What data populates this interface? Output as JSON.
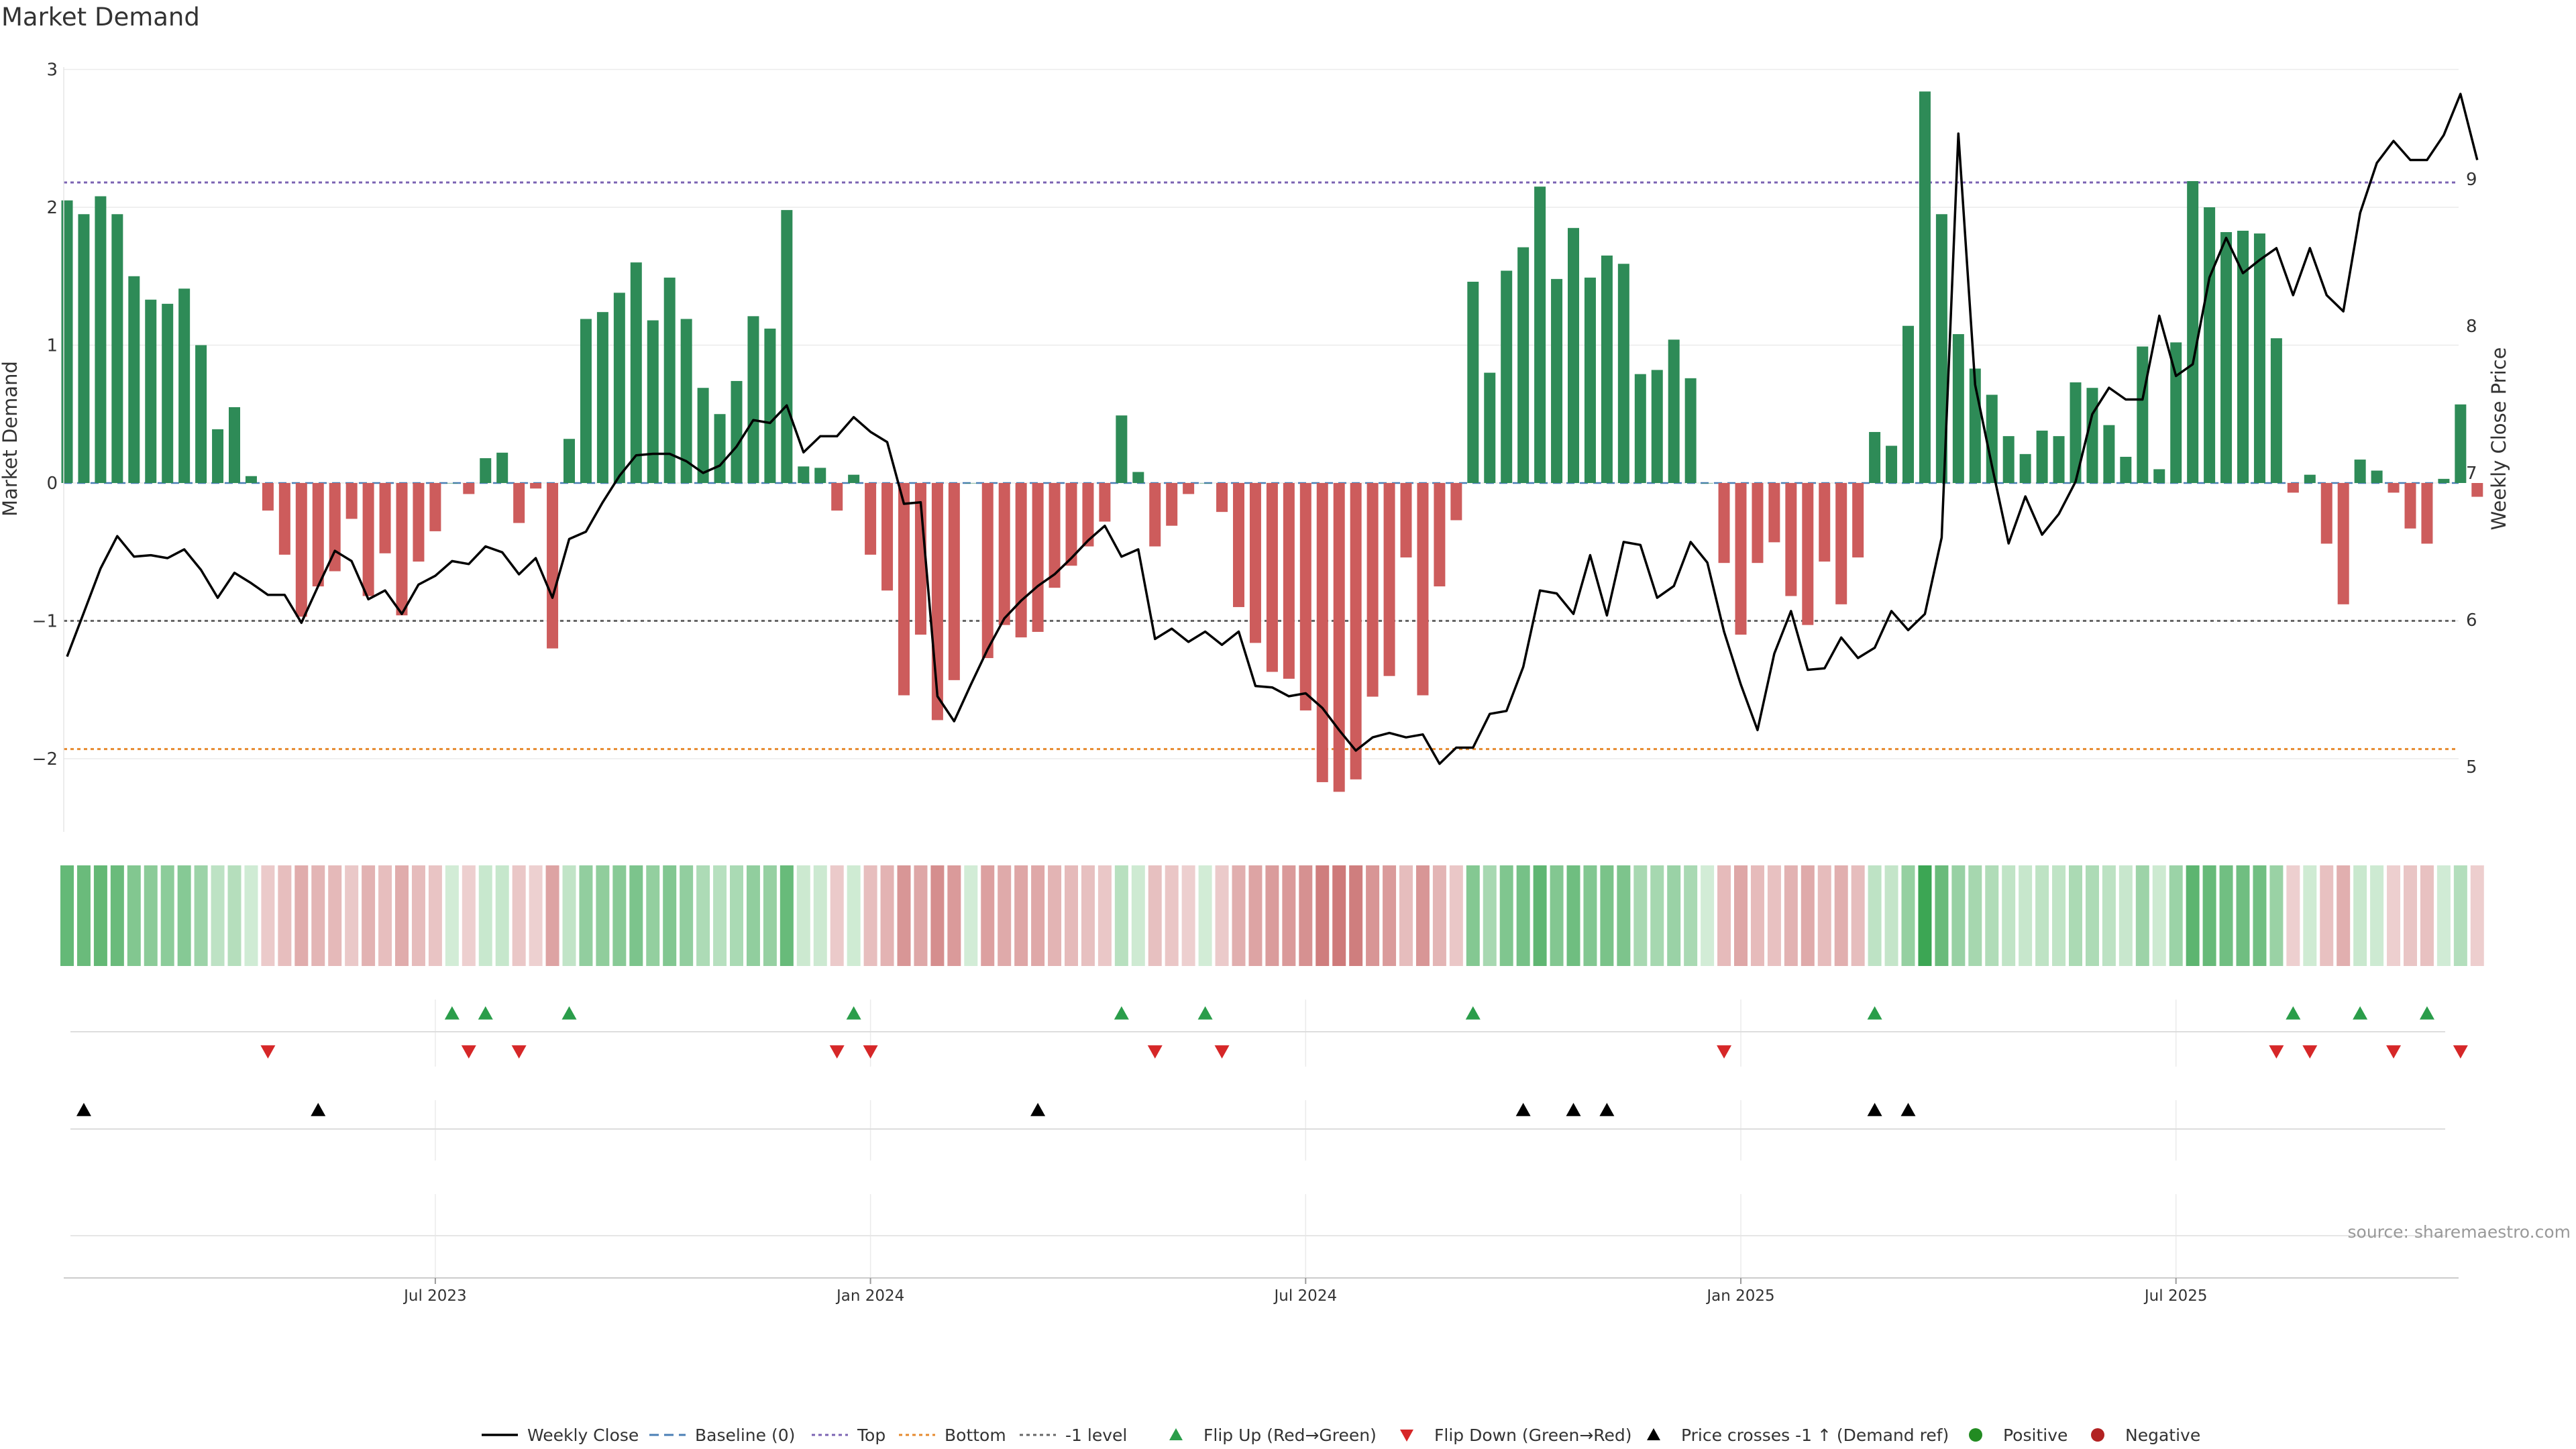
{
  "chart_data": {
    "type": "bar",
    "title": "Market Demand",
    "ylabel": "Market Demand",
    "y2label": "Weekly Close Price",
    "ylim": [
      -2.55,
      3.0
    ],
    "y2lim": [
      4.55,
      9.75
    ],
    "yticks": [
      3,
      2,
      1,
      0,
      -1,
      -2
    ],
    "ytick_labels": [
      "3",
      "2",
      "1",
      "0",
      "−1",
      "−2"
    ],
    "y2ticks": [
      9,
      8,
      7,
      6,
      5
    ],
    "y2tick_labels": [
      "9",
      "8",
      "7",
      "6",
      "5"
    ],
    "x_tick_labels": [
      "Jul 2023",
      "Jan 2024",
      "Jul 2024",
      "Jan 2025",
      "Jul 2025"
    ],
    "x_tick_weeks": [
      22,
      48,
      74,
      100,
      126
    ],
    "week_count": 144,
    "reference_lines": {
      "top": 2.18,
      "bottom": -1.93,
      "minus_one": -1.0,
      "baseline": 0
    },
    "demand": [
      2.05,
      1.95,
      2.08,
      1.95,
      1.5,
      1.33,
      1.3,
      1.41,
      1.0,
      0.39,
      0.55,
      0.05,
      -0.2,
      -0.52,
      -0.97,
      -0.75,
      -0.64,
      -0.26,
      -0.82,
      -0.51,
      -0.96,
      -0.57,
      -0.35,
      0.0,
      -0.08,
      0.18,
      0.22,
      -0.29,
      -0.04,
      -1.2,
      0.32,
      1.19,
      1.24,
      1.38,
      1.6,
      1.18,
      1.49,
      1.19,
      0.69,
      0.5,
      0.74,
      1.21,
      1.12,
      1.98,
      0.12,
      0.11,
      -0.2,
      0.06,
      -0.52,
      -0.78,
      -1.54,
      -1.1,
      -1.72,
      -1.43,
      0.0,
      -1.27,
      -1.03,
      -1.12,
      -1.08,
      -0.76,
      -0.6,
      -0.46,
      -0.28,
      0.49,
      0.08,
      -0.46,
      -0.31,
      -0.08,
      0.0,
      -0.21,
      -0.9,
      -1.16,
      -1.37,
      -1.42,
      -1.65,
      -2.17,
      -2.24,
      -2.15,
      -1.55,
      -1.4,
      -0.54,
      -1.54,
      -0.75,
      -0.27,
      1.46,
      0.8,
      1.54,
      1.71,
      2.15,
      1.48,
      1.85,
      1.49,
      1.65,
      1.59,
      0.79,
      0.82,
      1.04,
      0.76,
      0.0,
      -0.58,
      -1.1,
      -0.58,
      -0.43,
      -0.82,
      -1.03,
      -0.57,
      -0.88,
      -0.54,
      0.37,
      0.27,
      1.14,
      2.84,
      1.95,
      1.08,
      0.83,
      0.64,
      0.34,
      0.21,
      0.38,
      0.34,
      0.73,
      0.69,
      0.42,
      0.19,
      0.99,
      0.1,
      1.02,
      2.19,
      2.0,
      1.82,
      1.83,
      1.81,
      1.05,
      -0.07,
      0.06,
      -0.44,
      -0.88,
      0.17,
      0.09,
      -0.07,
      -0.33,
      -0.44,
      0.03,
      0.57,
      -0.1
    ],
    "close": [
      5.75,
      6.05,
      6.35,
      6.57,
      6.43,
      6.44,
      6.42,
      6.48,
      6.34,
      6.15,
      6.32,
      6.25,
      6.17,
      6.17,
      5.98,
      6.23,
      6.47,
      6.4,
      6.14,
      6.2,
      6.04,
      6.24,
      6.3,
      6.4,
      6.38,
      6.5,
      6.46,
      6.31,
      6.42,
      6.15,
      6.55,
      6.6,
      6.8,
      6.98,
      7.12,
      7.13,
      7.13,
      7.08,
      7.0,
      7.05,
      7.18,
      7.36,
      7.34,
      7.46,
      7.14,
      7.25,
      7.25,
      7.38,
      7.28,
      7.21,
      6.79,
      6.8,
      5.48,
      5.31,
      5.56,
      5.8,
      6.01,
      6.13,
      6.23,
      6.31,
      6.42,
      6.54,
      6.64,
      6.43,
      6.48,
      5.87,
      5.94,
      5.85,
      5.92,
      5.83,
      5.92,
      5.55,
      5.54,
      5.48,
      5.5,
      5.4,
      5.25,
      5.11,
      5.2,
      5.23,
      5.2,
      5.22,
      5.02,
      5.13,
      5.13,
      5.36,
      5.38,
      5.68,
      6.2,
      6.18,
      6.04,
      6.44,
      6.03,
      6.53,
      6.51,
      6.15,
      6.23,
      6.53,
      6.39,
      5.92,
      5.56,
      5.25,
      5.77,
      6.06,
      5.66,
      5.67,
      5.88,
      5.74,
      5.81,
      6.06,
      5.93,
      6.04,
      6.56,
      9.31,
      7.6,
      7.05,
      6.52,
      6.84,
      6.58,
      6.72,
      6.94,
      7.4,
      7.58,
      7.5,
      7.5,
      8.07,
      7.66,
      7.74,
      8.33,
      8.6,
      8.36,
      8.45,
      8.53,
      8.21,
      8.53,
      8.21,
      8.1,
      8.77,
      9.11,
      9.26,
      9.13,
      9.13,
      9.3,
      9.58,
      9.13
    ],
    "flip_up_weeks": [
      23,
      25,
      30,
      47,
      63,
      68,
      84,
      108,
      133,
      137,
      141
    ],
    "flip_down_weeks": [
      12,
      24,
      27,
      46,
      48,
      65,
      69,
      99,
      132,
      134,
      139,
      143
    ],
    "price_cross_weeks": [
      1,
      15,
      58,
      87,
      90,
      92,
      108,
      110
    ],
    "legend": [
      {
        "label": "Weekly Close",
        "kind": "line",
        "color": "#000000"
      },
      {
        "label": "Baseline (0)",
        "kind": "dash",
        "color": "#4a7fb5"
      },
      {
        "label": "Top",
        "kind": "dot",
        "color": "#7b63b3"
      },
      {
        "label": "Bottom",
        "kind": "dot",
        "color": "#e68a2e"
      },
      {
        "label": "-1 level",
        "kind": "dot",
        "color": "#666666"
      },
      {
        "label": "Flip Up (Red→Green)",
        "kind": "tri-up",
        "color": "#2a9d4a"
      },
      {
        "label": "Flip Down (Green→Red)",
        "kind": "tri-down",
        "color": "#d62728"
      },
      {
        "label": "Price crosses -1 ↑ (Demand ref)",
        "kind": "tri-up",
        "color": "#000000"
      },
      {
        "label": "Positive",
        "kind": "circle",
        "color": "#228b22"
      },
      {
        "label": "Negative",
        "kind": "circle",
        "color": "#b22222"
      }
    ],
    "source": "source: sharemaestro.com",
    "colors": {
      "positive": "#2e8b57",
      "negative": "#cd5c5c",
      "flip_up": "#2a9d4a",
      "flip_down": "#d62728",
      "grid": "#ebebeb"
    }
  }
}
